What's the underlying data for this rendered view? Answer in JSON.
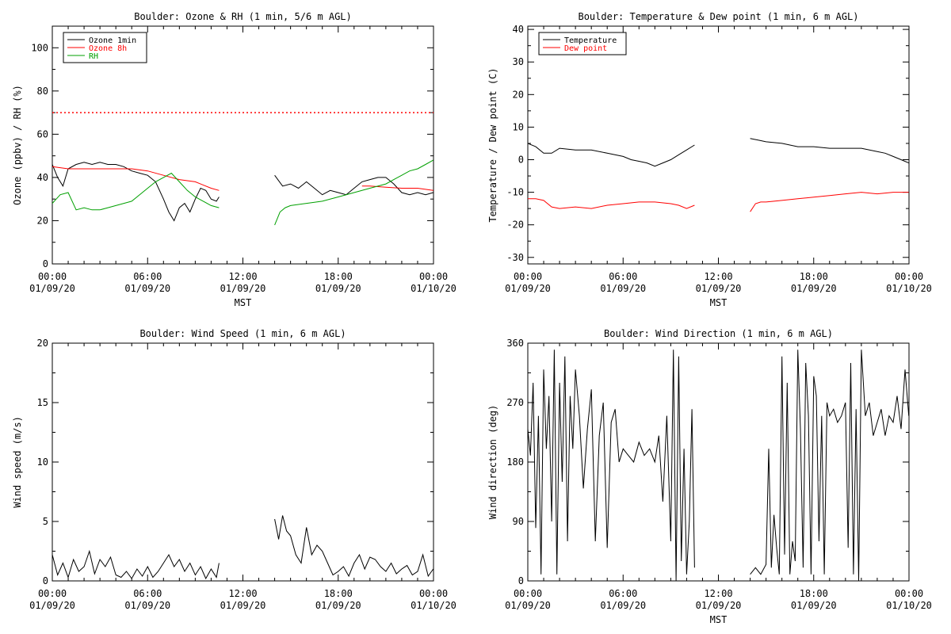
{
  "colors": {
    "black": "#000000",
    "red": "#ff0000",
    "green": "#00a000"
  },
  "x_tick_labels": [
    [
      "00:00",
      "01/09/20"
    ],
    [
      "06:00",
      "01/09/20"
    ],
    [
      "12:00",
      "01/09/20"
    ],
    [
      "18:00",
      "01/09/20"
    ],
    [
      "00:00",
      "01/10/20"
    ]
  ],
  "chart_data": [
    {
      "type": "line",
      "title": "Boulder: Ozone & RH (1 min, 5/6 m AGL)",
      "xlabel": "MST",
      "ylabel": "Ozone (ppbv) / RH (%)",
      "xlim": [
        "2020-01-09 00:00",
        "2020-01-10 00:00"
      ],
      "ylim": [
        0,
        110
      ],
      "yticks": [
        0,
        20,
        40,
        60,
        80,
        100
      ],
      "legend": "top-left",
      "reference_line": {
        "y": 70,
        "style": "dotted",
        "color": "#ff0000"
      },
      "series": [
        {
          "name": "Ozone 1min",
          "color": "#000000",
          "x": [
            "00:00",
            "00:20",
            "00:40",
            "01:00",
            "01:30",
            "02:00",
            "02:30",
            "03:00",
            "03:30",
            "04:00",
            "04:30",
            "05:00",
            "05:30",
            "06:00",
            "06:30",
            "07:00",
            "07:20",
            "07:40",
            "08:00",
            "08:20",
            "08:40",
            "09:00",
            "09:20",
            "09:40",
            "10:00",
            "10:20",
            "10:30",
            "14:00",
            "14:30",
            "15:00",
            "15:30",
            "16:00",
            "16:30",
            "17:00",
            "17:30",
            "18:00",
            "18:30",
            "19:00",
            "19:30",
            "20:00",
            "20:30",
            "21:00",
            "21:30",
            "22:00",
            "22:30",
            "23:00",
            "23:30",
            "23:59"
          ],
          "y": [
            46,
            40,
            36,
            44,
            46,
            47,
            46,
            47,
            46,
            46,
            45,
            43,
            42,
            41,
            38,
            30,
            24,
            20,
            26,
            28,
            24,
            30,
            35,
            34,
            30,
            29,
            31,
            41,
            36,
            37,
            35,
            38,
            35,
            32,
            34,
            33,
            32,
            35,
            38,
            39,
            40,
            40,
            37,
            33,
            32,
            33,
            32,
            33
          ]
        },
        {
          "name": "Ozone 8h",
          "color": "#ff0000",
          "x": [
            "00:00",
            "01:00",
            "02:00",
            "03:00",
            "04:00",
            "05:00",
            "06:00",
            "07:00",
            "08:00",
            "09:00",
            "10:00",
            "10:30",
            "19:30",
            "20:00",
            "21:00",
            "22:00",
            "23:00",
            "23:59"
          ],
          "y": [
            45,
            44,
            44,
            44,
            44,
            44,
            43,
            41,
            39,
            38,
            35,
            34,
            36,
            36,
            35.5,
            35,
            35,
            34
          ]
        },
        {
          "name": "RH",
          "color": "#00a000",
          "x": [
            "00:00",
            "00:30",
            "01:00",
            "01:30",
            "02:00",
            "02:30",
            "03:00",
            "03:30",
            "04:00",
            "05:00",
            "05:30",
            "06:00",
            "06:30",
            "07:00",
            "07:30",
            "08:00",
            "08:30",
            "09:00",
            "09:30",
            "10:00",
            "10:30",
            "14:00",
            "14:20",
            "14:40",
            "15:00",
            "16:00",
            "17:00",
            "18:00",
            "19:00",
            "20:00",
            "21:00",
            "21:30",
            "22:00",
            "22:30",
            "23:00",
            "23:30",
            "23:59"
          ],
          "y": [
            28,
            32,
            33,
            25,
            26,
            25,
            25,
            26,
            27,
            29,
            32,
            35,
            38,
            40,
            42,
            38,
            34,
            31,
            29,
            27,
            26,
            18,
            24,
            26,
            27,
            28,
            29,
            31,
            33,
            35,
            37,
            39,
            41,
            43,
            44,
            46,
            48
          ]
        }
      ]
    },
    {
      "type": "line",
      "title": "Boulder: Temperature & Dew point (1 min, 6 m AGL)",
      "xlabel": "MST",
      "ylabel": "Temperature / Dew point (C)",
      "xlim": [
        "2020-01-09 00:00",
        "2020-01-10 00:00"
      ],
      "ylim": [
        -32,
        41
      ],
      "yticks": [
        -30,
        -20,
        -10,
        0,
        10,
        20,
        30,
        40
      ],
      "legend": "top-left",
      "series": [
        {
          "name": "Temperature",
          "color": "#000000",
          "x": [
            "00:00",
            "00:30",
            "01:00",
            "01:30",
            "02:00",
            "03:00",
            "04:00",
            "05:00",
            "06:00",
            "06:30",
            "07:00",
            "07:30",
            "08:00",
            "08:30",
            "09:00",
            "09:30",
            "10:00",
            "10:30",
            "14:00",
            "14:30",
            "15:00",
            "16:00",
            "17:00",
            "18:00",
            "19:00",
            "20:00",
            "21:00",
            "22:00",
            "22:30",
            "23:00",
            "23:30",
            "23:59"
          ],
          "y": [
            5,
            4,
            2,
            2,
            3.5,
            3,
            3,
            2,
            1,
            0,
            -0.5,
            -1,
            -2,
            -1,
            0,
            1.5,
            3,
            4.5,
            6.5,
            6,
            5.5,
            5,
            4,
            4,
            3.5,
            3.5,
            3.5,
            2.5,
            2,
            1,
            0,
            -1
          ]
        },
        {
          "name": "Dew point",
          "color": "#ff0000",
          "x": [
            "00:00",
            "00:30",
            "01:00",
            "01:30",
            "02:00",
            "03:00",
            "04:00",
            "05:00",
            "06:00",
            "07:00",
            "08:00",
            "09:00",
            "09:30",
            "10:00",
            "10:30",
            "14:00",
            "14:20",
            "14:40",
            "15:00",
            "16:00",
            "17:00",
            "18:00",
            "19:00",
            "20:00",
            "21:00",
            "22:00",
            "23:00",
            "23:59"
          ],
          "y": [
            -12,
            -12,
            -12.5,
            -14.5,
            -15,
            -14.5,
            -15,
            -14,
            -13.5,
            -13,
            -13,
            -13.5,
            -14,
            -15,
            -14,
            -16,
            -13.5,
            -13,
            -13,
            -12.5,
            -12,
            -11.5,
            -11,
            -10.5,
            -10,
            -10.5,
            -10,
            -10
          ]
        }
      ]
    },
    {
      "type": "line",
      "title": "Boulder: Wind Speed (1 min, 6 m AGL)",
      "xlabel": "",
      "ylabel": "Wind speed (m/s)",
      "xlim": [
        "2020-01-09 00:00",
        "2020-01-10 00:00"
      ],
      "ylim": [
        0,
        20
      ],
      "yticks": [
        0,
        5,
        10,
        15,
        20
      ],
      "series": [
        {
          "name": "",
          "color": "#000000",
          "x": [
            "00:00",
            "00:20",
            "00:40",
            "01:00",
            "01:20",
            "01:40",
            "02:00",
            "02:20",
            "02:40",
            "03:00",
            "03:20",
            "03:40",
            "04:00",
            "04:20",
            "04:40",
            "05:00",
            "05:20",
            "05:40",
            "06:00",
            "06:20",
            "06:40",
            "07:00",
            "07:20",
            "07:40",
            "08:00",
            "08:20",
            "08:40",
            "09:00",
            "09:20",
            "09:40",
            "10:00",
            "10:20",
            "10:30",
            "14:00",
            "14:15",
            "14:30",
            "14:45",
            "15:00",
            "15:20",
            "15:40",
            "16:00",
            "16:20",
            "16:40",
            "17:00",
            "17:20",
            "17:40",
            "18:00",
            "18:20",
            "18:40",
            "19:00",
            "19:20",
            "19:40",
            "20:00",
            "20:20",
            "20:40",
            "21:00",
            "21:20",
            "21:40",
            "22:00",
            "22:20",
            "22:40",
            "23:00",
            "23:20",
            "23:40",
            "23:59"
          ],
          "y": [
            2.2,
            0.5,
            1.5,
            0.3,
            1.8,
            0.8,
            1.2,
            2.5,
            0.6,
            1.8,
            1.2,
            2.0,
            0.5,
            0.3,
            0.8,
            0.2,
            1.0,
            0.4,
            1.2,
            0.3,
            0.8,
            1.5,
            2.2,
            1.2,
            1.8,
            0.8,
            1.5,
            0.5,
            1.2,
            0.2,
            1.0,
            0.3,
            1.5,
            5.2,
            3.5,
            5.5,
            4.2,
            3.8,
            2.2,
            1.5,
            4.5,
            2.2,
            3.0,
            2.5,
            1.5,
            0.5,
            0.8,
            1.2,
            0.4,
            1.5,
            2.2,
            1.0,
            2.0,
            1.8,
            1.2,
            0.8,
            1.5,
            0.6,
            1.0,
            1.3,
            0.5,
            0.8,
            2.2,
            0.4,
            1.0
          ]
        }
      ]
    },
    {
      "type": "line",
      "title": "Boulder: Wind Direction (1 min, 6 m AGL)",
      "xlabel": "MST",
      "ylabel": "Wind direction (deg)",
      "xlim": [
        "2020-01-09 00:00",
        "2020-01-10 00:00"
      ],
      "ylim": [
        0,
        360
      ],
      "yticks": [
        0,
        90,
        180,
        270,
        360
      ],
      "series": [
        {
          "name": "",
          "color": "#000000",
          "x": [
            "00:00",
            "00:10",
            "00:20",
            "00:30",
            "00:40",
            "00:50",
            "01:00",
            "01:10",
            "01:20",
            "01:30",
            "01:40",
            "01:50",
            "02:00",
            "02:10",
            "02:20",
            "02:30",
            "02:40",
            "02:50",
            "03:00",
            "03:15",
            "03:30",
            "03:45",
            "04:00",
            "04:15",
            "04:30",
            "04:45",
            "05:00",
            "05:15",
            "05:30",
            "05:45",
            "06:00",
            "06:20",
            "06:40",
            "07:00",
            "07:20",
            "07:40",
            "08:00",
            "08:15",
            "08:30",
            "08:45",
            "09:00",
            "09:10",
            "09:20",
            "09:30",
            "09:40",
            "09:50",
            "10:00",
            "10:10",
            "10:20",
            "10:30",
            "14:00",
            "14:20",
            "14:40",
            "15:00",
            "15:10",
            "15:20",
            "15:30",
            "15:40",
            "15:50",
            "16:00",
            "16:10",
            "16:20",
            "16:30",
            "16:40",
            "16:50",
            "17:00",
            "17:10",
            "17:20",
            "17:30",
            "17:40",
            "17:50",
            "18:00",
            "18:10",
            "18:20",
            "18:30",
            "18:40",
            "18:50",
            "19:00",
            "19:15",
            "19:30",
            "19:45",
            "20:00",
            "20:10",
            "20:20",
            "20:30",
            "20:40",
            "20:50",
            "21:00",
            "21:15",
            "21:30",
            "21:45",
            "22:00",
            "22:15",
            "22:30",
            "22:45",
            "23:00",
            "23:15",
            "23:30",
            "23:45",
            "23:59"
          ],
          "y": [
            230,
            190,
            300,
            80,
            250,
            10,
            320,
            200,
            280,
            90,
            350,
            10,
            300,
            150,
            340,
            60,
            280,
            200,
            320,
            250,
            140,
            230,
            290,
            60,
            220,
            270,
            50,
            240,
            260,
            180,
            200,
            190,
            180,
            210,
            190,
            200,
            180,
            220,
            120,
            250,
            60,
            350,
            0,
            340,
            30,
            200,
            10,
            90,
            260,
            20,
            10,
            20,
            10,
            25,
            200,
            20,
            100,
            50,
            10,
            340,
            40,
            300,
            10,
            60,
            30,
            350,
            230,
            20,
            330,
            250,
            10,
            310,
            280,
            60,
            250,
            10,
            270,
            250,
            260,
            240,
            250,
            270,
            50,
            330,
            10,
            260,
            0,
            350,
            250,
            270,
            220,
            240,
            260,
            220,
            250,
            240,
            280,
            230,
            320,
            250
          ]
        }
      ]
    }
  ]
}
